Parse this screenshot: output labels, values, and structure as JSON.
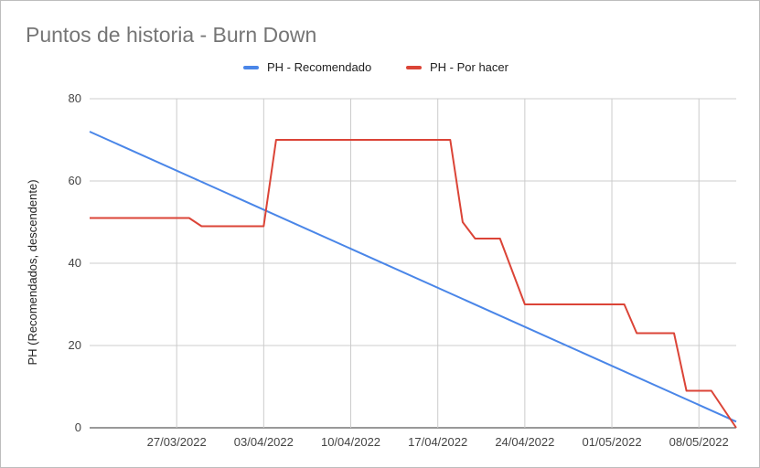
{
  "chart_data": {
    "type": "line",
    "title": "Puntos de historia - Burn Down",
    "ylabel": "PH (Recomendados, descendente)",
    "xlabel": "",
    "ylim": [
      0,
      80
    ],
    "yticks": [
      0,
      20,
      40,
      60,
      80
    ],
    "xlim": [
      "2022-03-20",
      "2022-05-11"
    ],
    "xtick_labels": [
      "27/03/2022",
      "03/04/2022",
      "10/04/2022",
      "17/04/2022",
      "24/04/2022",
      "01/05/2022",
      "08/05/2022"
    ],
    "xtick_dates": [
      "2022-03-27",
      "2022-04-03",
      "2022-04-10",
      "2022-04-17",
      "2022-04-24",
      "2022-05-01",
      "2022-05-08"
    ],
    "grid": true,
    "legend_position": "top",
    "series": [
      {
        "name": "PH - Recomendado",
        "color": "#4a86e8",
        "points": [
          [
            "2022-03-20",
            72
          ],
          [
            "2022-05-11",
            1.5
          ]
        ]
      },
      {
        "name": "PH - Por hacer",
        "color": "#db4437",
        "points": [
          [
            "2022-03-20",
            51
          ],
          [
            "2022-03-26",
            51
          ],
          [
            "2022-03-27",
            51
          ],
          [
            "2022-03-28",
            51
          ],
          [
            "2022-03-29",
            49
          ],
          [
            "2022-04-01",
            49
          ],
          [
            "2022-04-02",
            49
          ],
          [
            "2022-04-03",
            49
          ],
          [
            "2022-04-04",
            70
          ],
          [
            "2022-04-07",
            70
          ],
          [
            "2022-04-10",
            70
          ],
          [
            "2022-04-14",
            70
          ],
          [
            "2022-04-18",
            70
          ],
          [
            "2022-04-19",
            50
          ],
          [
            "2022-04-20",
            46
          ],
          [
            "2022-04-22",
            46
          ],
          [
            "2022-04-24",
            30
          ],
          [
            "2022-04-28",
            30
          ],
          [
            "2022-05-02",
            30
          ],
          [
            "2022-05-03",
            23
          ],
          [
            "2022-05-06",
            23
          ],
          [
            "2022-05-07",
            9
          ],
          [
            "2022-05-09",
            9
          ],
          [
            "2022-05-11",
            0
          ]
        ]
      }
    ]
  }
}
